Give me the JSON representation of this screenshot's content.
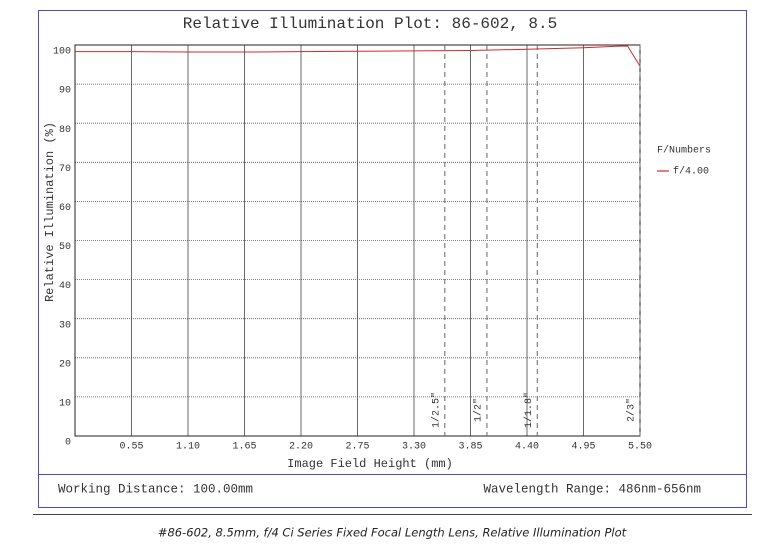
{
  "chart_data": {
    "type": "line",
    "title": "Relative Illumination Plot: 86-602, 8.5",
    "x_label": "Image Field Height (mm)",
    "y_label": "Relative Illumination (%)",
    "xlim": [
      0,
      5.5
    ],
    "ylim": [
      0,
      100
    ],
    "xticks": [
      {
        "value": 0.55,
        "label": "0.55"
      },
      {
        "value": 1.1,
        "label": "1.10"
      },
      {
        "value": 1.65,
        "label": "1.65"
      },
      {
        "value": 2.2,
        "label": "2.20"
      },
      {
        "value": 2.75,
        "label": "2.75"
      },
      {
        "value": 3.3,
        "label": "3.30"
      },
      {
        "value": 3.85,
        "label": "3.85"
      },
      {
        "value": 4.4,
        "label": "4.40"
      },
      {
        "value": 4.95,
        "label": "4.95"
      },
      {
        "value": 5.5,
        "label": "5.50"
      }
    ],
    "yticks": [
      0,
      10,
      20,
      30,
      40,
      50,
      60,
      70,
      80,
      90,
      100
    ],
    "grid": true,
    "legend_title": "F/Numbers",
    "series": [
      {
        "name": "f/4.00",
        "color": "#d62728",
        "x": [
          0,
          0.55,
          1.1,
          1.65,
          2.2,
          2.75,
          3.3,
          3.85,
          4.4,
          4.95,
          5.3,
          5.38,
          5.5
        ],
        "values": [
          98.3,
          98.3,
          98.2,
          98.2,
          98.3,
          98.4,
          98.5,
          98.6,
          98.9,
          99.3,
          99.7,
          99.7,
          94.6
        ]
      }
    ],
    "sensor_markers": [
      {
        "label": "1/2.5\"",
        "x": 3.6
      },
      {
        "label": "1/2\"",
        "x": 4.01
      },
      {
        "label": "1/1.8\"",
        "x": 4.5
      },
      {
        "label": "2/3\"",
        "x": 5.5
      }
    ],
    "working_distance": "Working Distance: 100.00mm",
    "wavelength_range": "Wavelength Range: 486nm-656nm",
    "caption": "#86-602, 8.5mm, f/4 Ci Series Fixed Focal Length Lens, Relative Illumination Plot"
  }
}
